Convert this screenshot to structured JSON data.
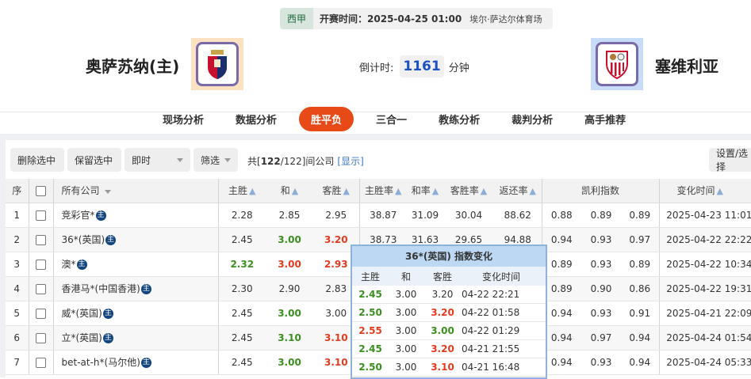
{
  "match": {
    "league": "西甲",
    "kickoff_label": "开赛时间：",
    "kickoff": "2025-04-25 01:00",
    "venue": "埃尔·萨达尔体育场",
    "home": "奥萨苏纳(主)",
    "away": "塞维利亚",
    "countdown_label": "倒计时:",
    "countdown": "1161",
    "countdown_unit": "分钟"
  },
  "nav": [
    "现场分析",
    "数据分析",
    "胜平负",
    "三合一",
    "教练分析",
    "裁判分析",
    "高手推荐"
  ],
  "nav_active": 2,
  "toolbar": {
    "delete": "删除选中",
    "keep": "保留选中",
    "mode": "即时",
    "filter": "筛选",
    "count_prefix": "共[",
    "count_shown": "122",
    "count_suffix": "/122]间公司",
    "show": "[显示]",
    "settings": "设置/选择"
  },
  "headers": {
    "seq": "序",
    "company": "所有公司",
    "home": "主胜",
    "draw": "和",
    "away": "客胜",
    "home_rate": "主胜率",
    "draw_rate": "和率",
    "away_rate": "客胜率",
    "return_rate": "返还率",
    "kelly": "凯利指数",
    "time": "变化时间"
  },
  "colors": {
    "up": "#3a8f1e",
    "down": "#e33b1f",
    "accent": "#e84a17"
  },
  "rows": [
    {
      "seq": "1",
      "company": "竞彩官*",
      "home": "2.28",
      "draw": "2.85",
      "away": "2.95",
      "hc": "",
      "dc": "",
      "ac": "",
      "hr": "38.87",
      "dr": "31.09",
      "ar": "30.04",
      "rr": "88.62",
      "k1": "0.88",
      "k2": "0.89",
      "k3": "0.89",
      "time": "2025-04-23 11:01"
    },
    {
      "seq": "2",
      "company": "36*(英国)",
      "home": "2.45",
      "draw": "3.00",
      "away": "3.20",
      "hc": "",
      "dc": "g",
      "ac": "r",
      "hr": "38.73",
      "dr": "31.63",
      "ar": "29.65",
      "rr": "94.88",
      "k1": "0.94",
      "k2": "0.93",
      "k3": "0.97",
      "time": "2025-04-22 22:22"
    },
    {
      "seq": "3",
      "company": "澳*",
      "home": "2.32",
      "draw": "3.00",
      "away": "2.93",
      "hc": "g",
      "dc": "r",
      "ac": "r",
      "hr": "",
      "dr": "",
      "ar": "",
      "rr": "",
      "k1": "0.89",
      "k2": "0.93",
      "k3": "0.89",
      "time": "2025-04-22 10:34"
    },
    {
      "seq": "4",
      "company": "香港马*(中国香港)",
      "home": "2.30",
      "draw": "2.90",
      "away": "2.83",
      "hc": "",
      "dc": "",
      "ac": "",
      "hr": "",
      "dr": "",
      "ar": "",
      "rr": "",
      "k1": "0.89",
      "k2": "0.90",
      "k3": "0.86",
      "time": "2025-04-22 19:31"
    },
    {
      "seq": "5",
      "company": "威*(英国)",
      "home": "2.45",
      "draw": "3.00",
      "away": "3.00",
      "hc": "",
      "dc": "g",
      "ac": "",
      "hr": "",
      "dr": "",
      "ar": "",
      "rr": "",
      "k1": "0.94",
      "k2": "0.93",
      "k3": "0.91",
      "time": "2025-04-21 22:09"
    },
    {
      "seq": "6",
      "company": "立*(英国)",
      "home": "2.45",
      "draw": "3.10",
      "away": "3.10",
      "hc": "",
      "dc": "g",
      "ac": "r",
      "hr": "",
      "dr": "",
      "ar": "",
      "rr": "",
      "k1": "0.94",
      "k2": "0.97",
      "k3": "0.94",
      "time": "2025-04-24 01:54"
    },
    {
      "seq": "7",
      "company": "bet-at-h*(马尔他)",
      "home": "2.45",
      "draw": "3.00",
      "away": "3.10",
      "hc": "",
      "dc": "g",
      "ac": "r",
      "hr": "",
      "dr": "",
      "ar": "",
      "rr": "",
      "k1": "0.94",
      "k2": "0.93",
      "k3": "0.94",
      "time": "2025-04-24 05:33"
    }
  ],
  "zhu_badge": "主",
  "popup": {
    "title": "36*(英国) 指数变化",
    "headers": [
      "主胜",
      "和",
      "客胜",
      "变化时间"
    ],
    "rows": [
      {
        "h": "2.45",
        "d": "3.00",
        "a": "3.20",
        "t": "04-22 22:21",
        "hc": "g",
        "dc": "",
        "ac": ""
      },
      {
        "h": "2.50",
        "d": "3.00",
        "a": "3.20",
        "t": "04-22 01:58",
        "hc": "g",
        "dc": "",
        "ac": "r"
      },
      {
        "h": "2.55",
        "d": "3.00",
        "a": "3.00",
        "t": "04-22 01:29",
        "hc": "r",
        "dc": "",
        "ac": "g"
      },
      {
        "h": "2.45",
        "d": "3.00",
        "a": "3.20",
        "t": "04-21 21:55",
        "hc": "g",
        "dc": "",
        "ac": "r"
      },
      {
        "h": "2.50",
        "d": "3.00",
        "a": "3.10",
        "t": "04-21 16:48",
        "hc": "g",
        "dc": "",
        "ac": "r"
      }
    ]
  }
}
